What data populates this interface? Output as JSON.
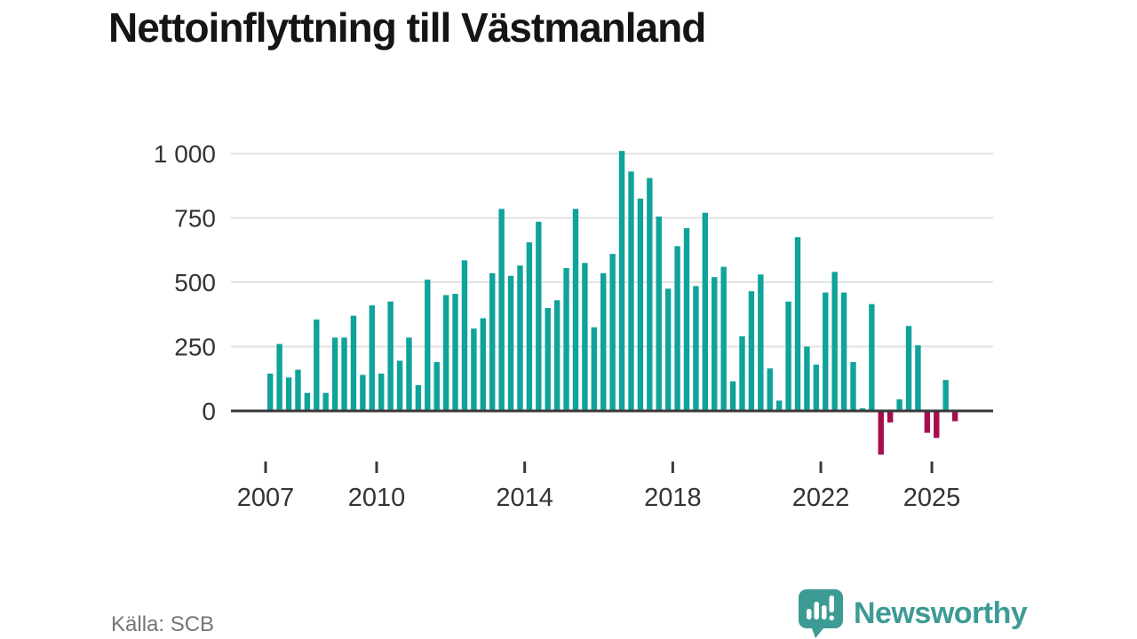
{
  "title": "Nettoinflyttning till Västmanland",
  "source": "Källa: SCB",
  "branding": {
    "name": "Newsworthy",
    "icon": "newsworthy-speech-bubble-chart-icon",
    "color": "#3d9b95"
  },
  "chart_data": {
    "type": "bar",
    "title": "Nettoinflyttning till Västmanland",
    "periodicity": "quarterly",
    "x_start_year": 2007,
    "x_start_quarter": 1,
    "values": [
      145,
      260,
      130,
      160,
      70,
      355,
      70,
      285,
      285,
      370,
      140,
      410,
      145,
      425,
      195,
      285,
      100,
      510,
      190,
      450,
      455,
      585,
      320,
      360,
      535,
      785,
      525,
      565,
      655,
      735,
      400,
      430,
      555,
      785,
      575,
      325,
      535,
      610,
      1010,
      930,
      825,
      905,
      755,
      475,
      640,
      710,
      485,
      770,
      520,
      560,
      115,
      290,
      465,
      530,
      165,
      40,
      425,
      675,
      250,
      180,
      460,
      540,
      460,
      190,
      10,
      415,
      -170,
      -45,
      45,
      330,
      255,
      -85,
      -105,
      120,
      -40
    ],
    "x_tick_years": [
      2007,
      2010,
      2014,
      2018,
      2022,
      2025
    ],
    "y_ticks": [
      0,
      250,
      500,
      750,
      1000
    ],
    "y_tick_labels": [
      "0",
      "250",
      "500",
      "750",
      "1 000"
    ],
    "ylim": [
      -250,
      1050
    ],
    "grid": "horizontal",
    "legend": "none",
    "xlabel": "",
    "ylabel": "",
    "positive_color": "#0fa39b",
    "negative_color": "#a50d4d",
    "axis_color": "#3a3a3a",
    "grid_color": "#e2e2e2",
    "tick_label_color": "#333333"
  }
}
